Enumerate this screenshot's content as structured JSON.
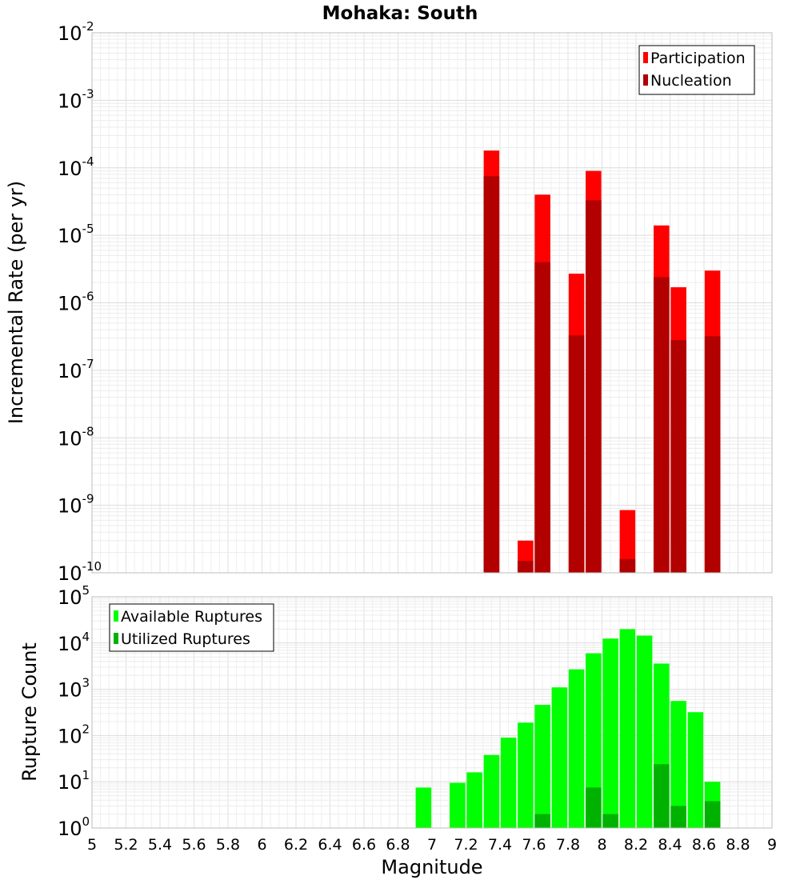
{
  "chart_data": [
    {
      "id": "rates",
      "type": "bar",
      "title": "Mohaka: South",
      "ylabel": "Incremental Rate (per yr)",
      "xlabel": "",
      "xlim": [
        5,
        9
      ],
      "yscale": "log",
      "ylim_exp": [
        -10,
        -2
      ],
      "y_tick_labels": [
        {
          "base": "10",
          "exp": "-10"
        },
        {
          "base": "10",
          "exp": "-9"
        },
        {
          "base": "10",
          "exp": "-8"
        },
        {
          "base": "10",
          "exp": "-7"
        },
        {
          "base": "10",
          "exp": "-6"
        },
        {
          "base": "10",
          "exp": "-5"
        },
        {
          "base": "10",
          "exp": "-4"
        },
        {
          "base": "10",
          "exp": "-3"
        },
        {
          "base": "10",
          "exp": "-2"
        }
      ],
      "legend": {
        "position": "top-right",
        "entries": [
          "Participation",
          "Nucleation"
        ]
      },
      "series": [
        {
          "name": "Participation",
          "color": "#ff0000",
          "points": [
            {
              "x": 7.35,
              "y": 0.00018
            },
            {
              "x": 7.55,
              "y": 3e-10
            },
            {
              "x": 7.65,
              "y": 4e-05
            },
            {
              "x": 7.85,
              "y": 2.7e-06
            },
            {
              "x": 7.95,
              "y": 9e-05
            },
            {
              "x": 8.15,
              "y": 8.5e-10
            },
            {
              "x": 8.35,
              "y": 1.4e-05
            },
            {
              "x": 8.45,
              "y": 1.7e-06
            },
            {
              "x": 8.65,
              "y": 3e-06
            }
          ]
        },
        {
          "name": "Nucleation",
          "color": "#b20000",
          "points": [
            {
              "x": 7.35,
              "y": 7.5e-05
            },
            {
              "x": 7.55,
              "y": 1.5e-10
            },
            {
              "x": 7.65,
              "y": 4e-06
            },
            {
              "x": 7.85,
              "y": 3.3e-07
            },
            {
              "x": 7.95,
              "y": 3.3e-05
            },
            {
              "x": 8.15,
              "y": 1.6e-10
            },
            {
              "x": 8.35,
              "y": 2.4e-06
            },
            {
              "x": 8.45,
              "y": 2.8e-07
            },
            {
              "x": 8.65,
              "y": 3.2e-07
            }
          ]
        }
      ]
    },
    {
      "id": "counts",
      "type": "bar",
      "title": "",
      "ylabel": "Rupture Count",
      "xlabel": "Magnitude",
      "xlim": [
        5,
        9
      ],
      "yscale": "log",
      "ylim_exp": [
        0,
        5
      ],
      "x_tick_labels": [
        "5",
        "5.2",
        "5.4",
        "5.6",
        "5.8",
        "6",
        "6.2",
        "6.4",
        "6.6",
        "6.8",
        "7",
        "7.2",
        "7.4",
        "7.6",
        "7.8",
        "8",
        "8.2",
        "8.4",
        "8.6",
        "8.8",
        "9"
      ],
      "y_tick_labels": [
        {
          "base": "10",
          "exp": "0"
        },
        {
          "base": "10",
          "exp": "1"
        },
        {
          "base": "10",
          "exp": "2"
        },
        {
          "base": "10",
          "exp": "3"
        },
        {
          "base": "10",
          "exp": "4"
        },
        {
          "base": "10",
          "exp": "5"
        }
      ],
      "legend": {
        "position": "top-left",
        "entries": [
          "Available Ruptures",
          "Utilized Ruptures"
        ]
      },
      "series": [
        {
          "name": "Available Ruptures",
          "color": "#00ff00",
          "points": [
            {
              "x": 6.95,
              "y": 7.5
            },
            {
              "x": 7.15,
              "y": 9.5
            },
            {
              "x": 7.25,
              "y": 16
            },
            {
              "x": 7.35,
              "y": 38
            },
            {
              "x": 7.45,
              "y": 90
            },
            {
              "x": 7.55,
              "y": 190
            },
            {
              "x": 7.65,
              "y": 460
            },
            {
              "x": 7.75,
              "y": 1100
            },
            {
              "x": 7.85,
              "y": 2700
            },
            {
              "x": 7.95,
              "y": 6000
            },
            {
              "x": 8.05,
              "y": 12500
            },
            {
              "x": 8.15,
              "y": 20000
            },
            {
              "x": 8.25,
              "y": 14500
            },
            {
              "x": 8.35,
              "y": 3600
            },
            {
              "x": 8.45,
              "y": 560
            },
            {
              "x": 8.55,
              "y": 320
            },
            {
              "x": 8.65,
              "y": 10
            }
          ]
        },
        {
          "name": "Utilized Ruptures",
          "color": "#00b200",
          "points": [
            {
              "x": 7.35,
              "y": 1
            },
            {
              "x": 7.55,
              "y": 1
            },
            {
              "x": 7.65,
              "y": 2
            },
            {
              "x": 7.85,
              "y": 1
            },
            {
              "x": 7.95,
              "y": 7.5
            },
            {
              "x": 8.05,
              "y": 2
            },
            {
              "x": 8.15,
              "y": 1
            },
            {
              "x": 8.35,
              "y": 24
            },
            {
              "x": 8.45,
              "y": 3
            },
            {
              "x": 8.65,
              "y": 3.8
            }
          ]
        }
      ]
    }
  ]
}
